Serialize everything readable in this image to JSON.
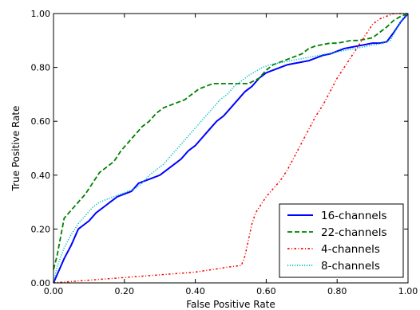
{
  "chart_data": {
    "type": "line",
    "xlabel": "False Positive Rate",
    "ylabel": "True Positive Rate",
    "xlim": [
      0,
      1
    ],
    "ylim": [
      0,
      1
    ],
    "x_ticks": [
      "0.00",
      "0.20",
      "0.40",
      "0.60",
      "0.80",
      "1.00"
    ],
    "y_ticks": [
      "0.00",
      "0.20",
      "0.40",
      "0.60",
      "0.80",
      "1.00"
    ],
    "grid": false,
    "legend_position": "lower-right",
    "series": [
      {
        "name": "16-channels",
        "color": "#0000ff",
        "style": "solid",
        "x": [
          0,
          0.01,
          0.03,
          0.05,
          0.07,
          0.09,
          0.1,
          0.12,
          0.14,
          0.16,
          0.18,
          0.2,
          0.22,
          0.24,
          0.26,
          0.28,
          0.3,
          0.32,
          0.34,
          0.36,
          0.38,
          0.4,
          0.42,
          0.44,
          0.46,
          0.48,
          0.5,
          0.52,
          0.54,
          0.56,
          0.58,
          0.6,
          0.62,
          0.64,
          0.66,
          0.68,
          0.7,
          0.72,
          0.74,
          0.76,
          0.78,
          0.8,
          0.82,
          0.84,
          0.86,
          0.88,
          0.9,
          0.92,
          0.94,
          0.96,
          0.98,
          1.0
        ],
        "y": [
          0,
          0.03,
          0.09,
          0.14,
          0.2,
          0.22,
          0.23,
          0.26,
          0.28,
          0.3,
          0.32,
          0.33,
          0.34,
          0.37,
          0.38,
          0.39,
          0.4,
          0.42,
          0.44,
          0.46,
          0.49,
          0.51,
          0.54,
          0.57,
          0.6,
          0.62,
          0.65,
          0.68,
          0.71,
          0.73,
          0.76,
          0.78,
          0.79,
          0.8,
          0.81,
          0.815,
          0.82,
          0.825,
          0.835,
          0.845,
          0.85,
          0.86,
          0.87,
          0.875,
          0.88,
          0.885,
          0.89,
          0.89,
          0.895,
          0.93,
          0.97,
          1.0
        ]
      },
      {
        "name": "22-channels",
        "color": "#008000",
        "style": "dashed",
        "x": [
          0,
          0.01,
          0.02,
          0.03,
          0.05,
          0.07,
          0.09,
          0.11,
          0.13,
          0.15,
          0.17,
          0.19,
          0.21,
          0.23,
          0.25,
          0.27,
          0.29,
          0.31,
          0.33,
          0.35,
          0.37,
          0.39,
          0.41,
          0.43,
          0.45,
          0.5,
          0.55,
          0.58,
          0.6,
          0.62,
          0.64,
          0.66,
          0.68,
          0.7,
          0.72,
          0.74,
          0.76,
          0.78,
          0.8,
          0.82,
          0.84,
          0.86,
          0.88,
          0.9,
          0.92,
          0.94,
          0.96,
          0.98,
          1.0
        ],
        "y": [
          0.05,
          0.1,
          0.17,
          0.24,
          0.27,
          0.3,
          0.33,
          0.37,
          0.41,
          0.43,
          0.45,
          0.49,
          0.52,
          0.55,
          0.58,
          0.6,
          0.63,
          0.65,
          0.66,
          0.67,
          0.68,
          0.7,
          0.72,
          0.73,
          0.74,
          0.74,
          0.74,
          0.76,
          0.79,
          0.81,
          0.82,
          0.83,
          0.84,
          0.85,
          0.87,
          0.88,
          0.885,
          0.89,
          0.89,
          0.895,
          0.9,
          0.9,
          0.905,
          0.91,
          0.93,
          0.95,
          0.975,
          0.99,
          1.0
        ]
      },
      {
        "name": "4-channels",
        "color": "#ff0000",
        "style": "dashdot",
        "x": [
          0,
          0.05,
          0.1,
          0.15,
          0.2,
          0.25,
          0.3,
          0.35,
          0.4,
          0.45,
          0.5,
          0.53,
          0.54,
          0.55,
          0.56,
          0.57,
          0.58,
          0.59,
          0.6,
          0.62,
          0.64,
          0.66,
          0.68,
          0.7,
          0.72,
          0.74,
          0.76,
          0.78,
          0.8,
          0.82,
          0.84,
          0.86,
          0.88,
          0.9,
          0.92,
          0.94,
          0.96,
          0.98,
          1.0
        ],
        "y": [
          0,
          0.005,
          0.01,
          0.015,
          0.02,
          0.025,
          0.03,
          0.035,
          0.04,
          0.05,
          0.06,
          0.065,
          0.1,
          0.16,
          0.22,
          0.26,
          0.28,
          0.3,
          0.32,
          0.35,
          0.38,
          0.42,
          0.47,
          0.52,
          0.57,
          0.62,
          0.66,
          0.71,
          0.76,
          0.8,
          0.84,
          0.88,
          0.92,
          0.96,
          0.98,
          0.99,
          1.0,
          1.0,
          1.0
        ]
      },
      {
        "name": "8-channels",
        "color": "#00bfbf",
        "style": "dotted",
        "x": [
          0,
          0.01,
          0.03,
          0.05,
          0.07,
          0.09,
          0.11,
          0.13,
          0.15,
          0.17,
          0.19,
          0.21,
          0.23,
          0.25,
          0.27,
          0.29,
          0.31,
          0.33,
          0.35,
          0.37,
          0.39,
          0.41,
          0.43,
          0.45,
          0.47,
          0.49,
          0.51,
          0.53,
          0.55,
          0.57,
          0.59,
          0.61,
          0.63,
          0.65,
          0.67,
          0.69,
          0.71,
          0.73,
          0.75,
          0.77,
          0.79,
          0.81,
          0.83,
          0.85,
          0.87,
          0.89,
          0.91,
          0.93,
          0.95,
          0.97,
          0.99,
          1.0
        ],
        "y": [
          0,
          0.06,
          0.13,
          0.18,
          0.22,
          0.25,
          0.28,
          0.3,
          0.31,
          0.32,
          0.33,
          0.34,
          0.35,
          0.37,
          0.4,
          0.42,
          0.44,
          0.47,
          0.5,
          0.53,
          0.56,
          0.59,
          0.62,
          0.65,
          0.68,
          0.7,
          0.73,
          0.75,
          0.77,
          0.785,
          0.8,
          0.81,
          0.815,
          0.82,
          0.825,
          0.83,
          0.835,
          0.84,
          0.845,
          0.85,
          0.855,
          0.86,
          0.865,
          0.87,
          0.875,
          0.88,
          0.885,
          0.89,
          0.9,
          0.95,
          0.99,
          1.0
        ]
      }
    ]
  }
}
